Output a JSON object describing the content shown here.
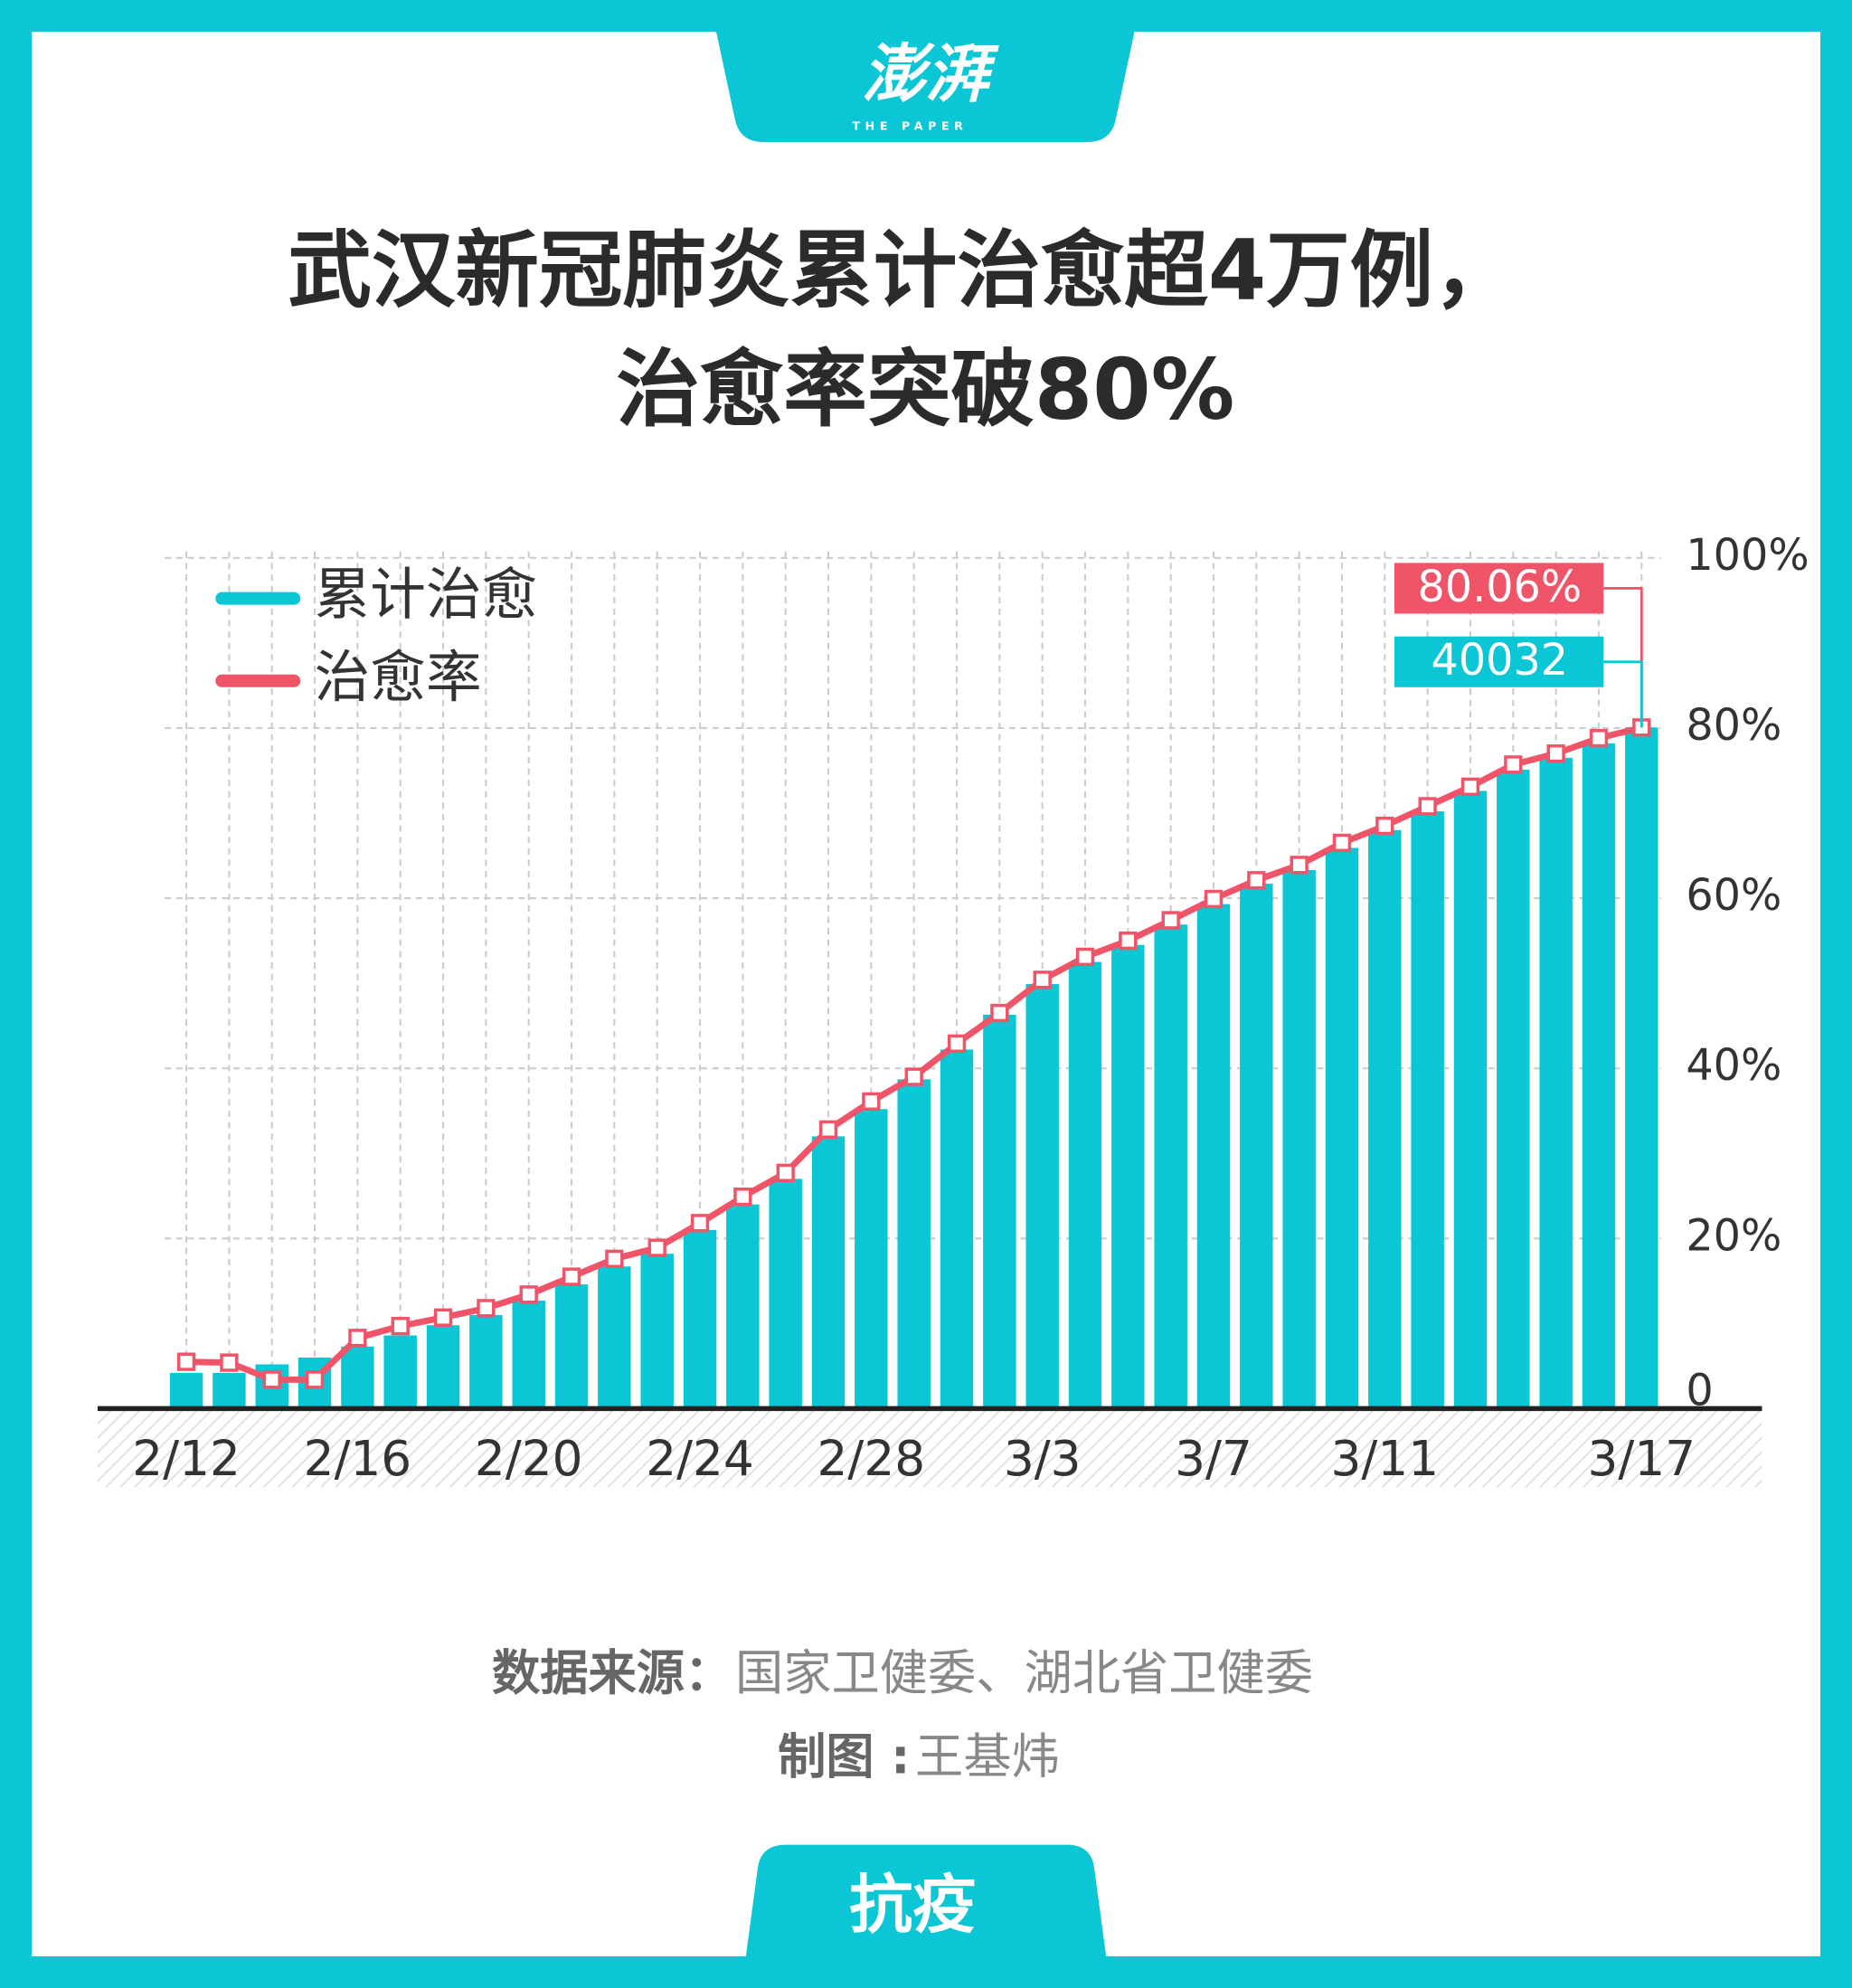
{
  "logo": "澎湃",
  "logo_sub": "THE PAPER",
  "source_label": "数据来源：",
  "source": "国家卫健委、湖北省卫健委",
  "credit_label": "制图 :",
  "credit": "王基炜",
  "tag": "抗疫",
  "chart_data": {
    "type": "bar_line",
    "title": [
      "武汉新冠肺炎累计治愈超4万例，",
      "治愈率突破80%"
    ],
    "categories": [
      "2/12",
      null,
      null,
      null,
      "2/16",
      null,
      null,
      null,
      "2/20",
      null,
      null,
      null,
      "2/24",
      null,
      null,
      null,
      "2/28",
      null,
      null,
      null,
      "3/3",
      null,
      null,
      null,
      "3/7",
      null,
      null,
      null,
      "3/11",
      null,
      null,
      null,
      null,
      null,
      "3/17"
    ],
    "series": [
      {
        "name": "累计治愈",
        "color": "#0bc6d4",
        "type": "bar",
        "values": [
          2100,
          2100,
          2600,
          3000,
          3650,
          4300,
          4900,
          5500,
          6350,
          7300,
          8350,
          9100,
          10500,
          12000,
          13500,
          16000,
          17600,
          19350,
          21100,
          23150,
          24950,
          26250,
          27250,
          28450,
          29650,
          30850,
          31650,
          32950,
          34000,
          35100,
          36300,
          37550,
          38250,
          39100,
          40032
        ]
      },
      {
        "name": "治愈率",
        "color": "#f05468",
        "type": "line",
        "axis": "y2",
        "values": [
          5.5,
          5.4,
          3.4,
          3.4,
          8.3,
          9.7,
          10.7,
          11.8,
          13.4,
          15.5,
          17.6,
          18.9,
          21.8,
          24.9,
          27.7,
          32.8,
          36.1,
          39.0,
          42.9,
          46.5,
          50.4,
          53.1,
          55.0,
          57.4,
          59.9,
          62.1,
          63.9,
          66.5,
          68.5,
          70.8,
          73.1,
          75.7,
          77.0,
          78.8,
          80.06
        ],
        "value_labels": [
          null,
          null,
          null,
          null,
          null,
          null,
          null,
          null,
          null,
          null,
          null,
          null,
          null,
          null,
          null,
          null,
          null,
          null,
          null,
          null,
          null,
          null,
          null,
          null,
          null,
          null,
          null,
          null,
          null,
          null,
          null,
          null,
          null,
          null,
          "80.06%"
        ]
      }
    ],
    "ylim": [
      0,
      50000
    ],
    "y2lim": [
      0,
      100
    ],
    "y2ticks": [
      0,
      {
        "value": 20,
        "label": "20%"
      },
      {
        "value": 40,
        "label": "40%"
      },
      {
        "value": 60,
        "label": "60%"
      },
      {
        "value": 80,
        "label": "80%"
      },
      {
        "value": 100,
        "label": "100%"
      }
    ],
    "annotations": [
      {
        "series": 1,
        "index": 34,
        "text": "80.06%"
      },
      {
        "series": 0,
        "index": 34,
        "text": "40032"
      }
    ],
    "grid": true,
    "legend": "top-left"
  }
}
